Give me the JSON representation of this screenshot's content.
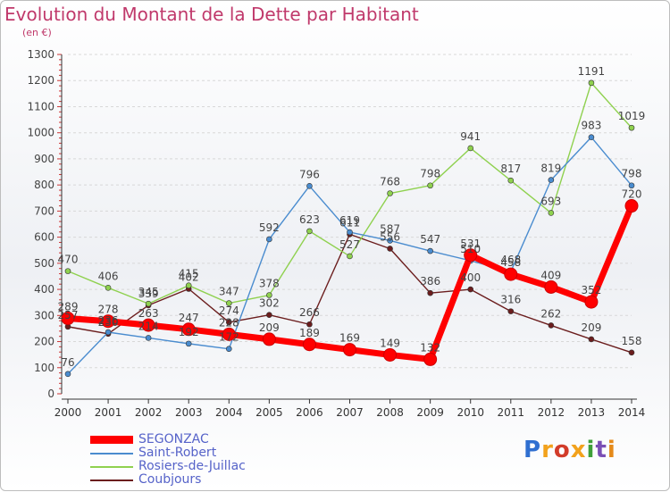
{
  "title": "Evolution du Montant de la Dette par Habitant",
  "subtitle": "(en €)",
  "logo": {
    "text": "Proxiti",
    "colors": [
      "#2f6fd0",
      "#f2a21c",
      "#d23c2a",
      "#f2a21c",
      "#3f9f3a",
      "#7a4fb5",
      "#e58a1a"
    ]
  },
  "chart_data": {
    "type": "line",
    "x": [
      2000,
      2001,
      2002,
      2003,
      2004,
      2005,
      2006,
      2007,
      2008,
      2009,
      2010,
      2011,
      2012,
      2013,
      2014
    ],
    "ylim": [
      0,
      1300
    ],
    "yticks": [
      0,
      100,
      200,
      300,
      400,
      500,
      600,
      700,
      800,
      900,
      1000,
      1100,
      1200,
      1300
    ],
    "grid": "horizontal dashed",
    "legend": "bottom-left",
    "series": [
      {
        "name": "Coubjours",
        "color": "#6b1d1d",
        "values": [
          257,
          230,
          339,
          402,
          274,
          302,
          266,
          611,
          556,
          386,
          400,
          316,
          262,
          209,
          158
        ]
      },
      {
        "name": "Rosiers-de-Juillac",
        "color": "#8fd14f",
        "values": [
          470,
          406,
          345,
          415,
          347,
          378,
          623,
          527,
          768,
          798,
          941,
          817,
          693,
          1191,
          1019
        ]
      },
      {
        "name": "Saint-Robert",
        "color": "#4a8ccf",
        "values": [
          76,
          236,
          214,
          192,
          172,
          592,
          796,
          619,
          587,
          547,
          510,
          468,
          819,
          983,
          798
        ]
      },
      {
        "name": "SEGONZAC",
        "color": "#ff0000",
        "values": [
          289,
          278,
          263,
          247,
          228,
          209,
          189,
          169,
          149,
          132,
          531,
          458,
          409,
          352,
          720
        ]
      }
    ],
    "legend_order": [
      "SEGONZAC",
      "Saint-Robert",
      "Rosiers-de-Juillac",
      "Coubjours"
    ]
  }
}
